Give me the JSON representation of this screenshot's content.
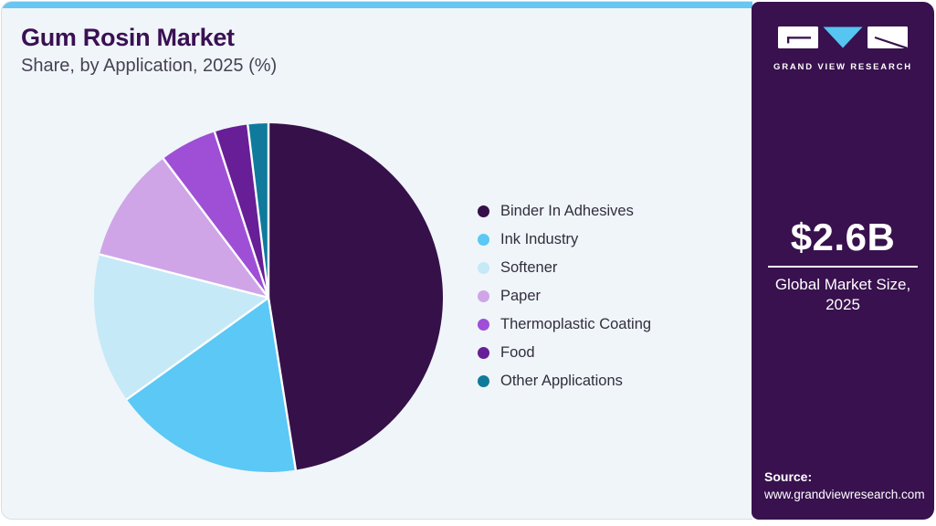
{
  "header": {
    "title": "Gum Rosin Market",
    "subtitle": "Share, by Application, 2025 (%)"
  },
  "chart_data": {
    "type": "pie",
    "title": "Gum Rosin Market Share, by Application, 2025 (%)",
    "start_angle_deg": 0,
    "direction": "clockwise",
    "legend_position": "right",
    "data_labels_shown": false,
    "slices": [
      {
        "label": "Binder In Adhesives",
        "value": 47.5,
        "color": "#351049"
      },
      {
        "label": "Ink Industry",
        "value": 17.6,
        "color": "#5bc8f5"
      },
      {
        "label": "Softener",
        "value": 13.9,
        "color": "#c5e9f7"
      },
      {
        "label": "Paper",
        "value": 10.7,
        "color": "#cfa5e8"
      },
      {
        "label": "Thermoplastic Coating",
        "value": 5.3,
        "color": "#9e4fd6"
      },
      {
        "label": "Food",
        "value": 3.1,
        "color": "#671e96"
      },
      {
        "label": "Other Applications",
        "value": 1.9,
        "color": "#0f7a9c"
      }
    ]
  },
  "sidebar": {
    "brand_name": "GRAND VIEW RESEARCH",
    "market_size": {
      "value": "$2.6B",
      "caption_line1": "Global Market Size,",
      "caption_line2": "2025"
    },
    "source": {
      "label": "Source:",
      "url": "www.grandviewresearch.com"
    }
  },
  "colors": {
    "top_bar": "#68c6f0",
    "panel_background": "#f0f5f9",
    "sidebar_background": "#38114e",
    "title_text": "#3a1053",
    "logo_blue": "#56c5f1",
    "slice_separator": "#ffffff"
  }
}
